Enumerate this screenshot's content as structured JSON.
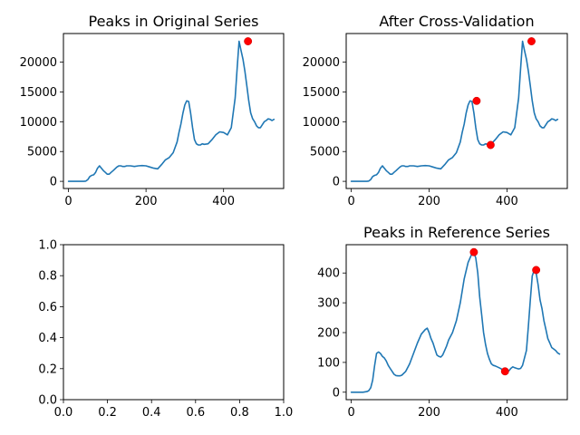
{
  "chart_data": [
    {
      "type": "line",
      "title": "Peaks in Original Series",
      "xlim": [
        -13,
        555
      ],
      "ylim": [
        -1200,
        24800
      ],
      "xticks": [
        0,
        200,
        400
      ],
      "yticks": [
        0,
        5000,
        10000,
        15000,
        20000
      ],
      "series": [
        {
          "x": [
            0,
            10,
            20,
            30,
            40,
            45,
            50,
            55,
            60,
            65,
            70,
            75,
            80,
            85,
            90,
            95,
            100,
            105,
            110,
            115,
            120,
            125,
            130,
            135,
            140,
            145,
            150,
            160,
            170,
            180,
            190,
            200,
            210,
            220,
            230,
            240,
            250,
            260,
            270,
            280,
            285,
            290,
            295,
            300,
            305,
            310,
            315,
            320,
            325,
            330,
            335,
            340,
            345,
            350,
            360,
            370,
            380,
            390,
            400,
            410,
            420,
            430,
            435,
            440,
            445,
            450,
            455,
            460,
            465,
            470,
            475,
            480,
            485,
            490,
            495,
            500,
            505,
            510,
            515,
            520,
            525,
            530
          ],
          "y": [
            0,
            0,
            0,
            0,
            0,
            50,
            300,
            800,
            1000,
            1100,
            1500,
            2200,
            2600,
            2200,
            1800,
            1500,
            1200,
            1200,
            1500,
            1800,
            2100,
            2400,
            2600,
            2600,
            2500,
            2500,
            2600,
            2600,
            2500,
            2600,
            2650,
            2600,
            2400,
            2200,
            2100,
            2800,
            3600,
            4000,
            4800,
            6600,
            8200,
            9600,
            11400,
            12800,
            13500,
            13400,
            11500,
            9000,
            7000,
            6300,
            6100,
            6100,
            6300,
            6200,
            6300,
            7000,
            7800,
            8300,
            8200,
            7800,
            9000,
            14000,
            19000,
            23500,
            22000,
            20500,
            18500,
            16000,
            13500,
            11500,
            10500,
            10000,
            9300,
            9000,
            9000,
            9500,
            10000,
            10200,
            10500,
            10400,
            10200,
            10400
          ]
        }
      ],
      "peaks": {
        "x": [
          463
        ],
        "y": [
          23500
        ]
      }
    },
    {
      "type": "line",
      "title": "After Cross-Validation",
      "xlim": [
        -13,
        555
      ],
      "ylim": [
        -1200,
        24800
      ],
      "xticks": [
        0,
        200,
        400
      ],
      "yticks": [
        0,
        5000,
        10000,
        15000,
        20000
      ],
      "series": [
        {
          "x": [
            0,
            10,
            20,
            30,
            40,
            45,
            50,
            55,
            60,
            65,
            70,
            75,
            80,
            85,
            90,
            95,
            100,
            105,
            110,
            115,
            120,
            125,
            130,
            135,
            140,
            145,
            150,
            160,
            170,
            180,
            190,
            200,
            210,
            220,
            230,
            240,
            250,
            260,
            270,
            280,
            285,
            290,
            295,
            300,
            305,
            310,
            315,
            320,
            325,
            330,
            335,
            340,
            345,
            350,
            360,
            370,
            380,
            390,
            400,
            410,
            420,
            430,
            435,
            440,
            445,
            450,
            455,
            460,
            465,
            470,
            475,
            480,
            485,
            490,
            495,
            500,
            505,
            510,
            515,
            520,
            525,
            530
          ],
          "y": [
            0,
            0,
            0,
            0,
            0,
            50,
            300,
            800,
            1000,
            1100,
            1500,
            2200,
            2600,
            2200,
            1800,
            1500,
            1200,
            1200,
            1500,
            1800,
            2100,
            2400,
            2600,
            2600,
            2500,
            2500,
            2600,
            2600,
            2500,
            2600,
            2650,
            2600,
            2400,
            2200,
            2100,
            2800,
            3600,
            4000,
            4800,
            6600,
            8200,
            9600,
            11400,
            12800,
            13500,
            13400,
            11500,
            9000,
            7000,
            6300,
            6100,
            6100,
            6300,
            6200,
            6300,
            7000,
            7800,
            8300,
            8200,
            7800,
            9000,
            14000,
            19000,
            23500,
            22000,
            20500,
            18500,
            16000,
            13500,
            11500,
            10500,
            10000,
            9300,
            9000,
            9000,
            9500,
            10000,
            10200,
            10500,
            10400,
            10200,
            10400
          ]
        }
      ],
      "peaks": {
        "x": [
          322,
          358,
          463
        ],
        "y": [
          13500,
          6100,
          23500
        ]
      }
    },
    {
      "type": "line",
      "title": "",
      "xlim": [
        0,
        1
      ],
      "ylim": [
        0,
        1
      ],
      "xticks": [
        0.0,
        0.2,
        0.4,
        0.6,
        0.8,
        1.0
      ],
      "yticks": [
        0.0,
        0.2,
        0.4,
        0.6,
        0.8,
        1.0
      ],
      "series": [],
      "peaks": {
        "x": [],
        "y": []
      }
    },
    {
      "type": "line",
      "title": "Peaks in Reference Series",
      "xlim": [
        -13,
        555
      ],
      "ylim": [
        -25,
        495
      ],
      "xticks": [
        0,
        200,
        400
      ],
      "yticks": [
        0,
        100,
        200,
        300,
        400
      ],
      "series": [
        {
          "x": [
            0,
            10,
            20,
            30,
            40,
            45,
            50,
            55,
            60,
            65,
            70,
            75,
            80,
            85,
            90,
            95,
            100,
            105,
            110,
            115,
            120,
            125,
            130,
            140,
            150,
            160,
            170,
            180,
            190,
            195,
            200,
            205,
            210,
            215,
            220,
            225,
            230,
            235,
            240,
            245,
            250,
            260,
            270,
            280,
            290,
            300,
            305,
            310,
            315,
            320,
            325,
            330,
            335,
            340,
            345,
            350,
            355,
            360,
            365,
            370,
            380,
            390,
            395,
            400,
            405,
            410,
            415,
            420,
            425,
            430,
            435,
            440,
            450,
            455,
            460,
            465,
            470,
            475,
            480,
            485,
            490,
            495,
            500,
            505,
            510,
            515,
            520,
            525,
            530,
            535
          ],
          "y": [
            0,
            0,
            0,
            0,
            2,
            5,
            15,
            40,
            90,
            130,
            135,
            130,
            120,
            115,
            105,
            90,
            80,
            70,
            60,
            56,
            55,
            55,
            57,
            70,
            95,
            130,
            165,
            195,
            210,
            215,
            200,
            180,
            165,
            145,
            125,
            120,
            118,
            125,
            140,
            155,
            175,
            200,
            240,
            300,
            380,
            435,
            450,
            465,
            470,
            450,
            400,
            320,
            260,
            200,
            160,
            130,
            110,
            95,
            90,
            88,
            82,
            75,
            72,
            70,
            72,
            80,
            85,
            82,
            80,
            78,
            80,
            90,
            140,
            220,
            310,
            390,
            410,
            400,
            360,
            310,
            280,
            240,
            210,
            180,
            165,
            150,
            145,
            140,
            132,
            128
          ]
        }
      ],
      "peaks": {
        "x": [
          315,
          395,
          475
        ],
        "y": [
          470,
          70,
          410
        ]
      }
    }
  ]
}
